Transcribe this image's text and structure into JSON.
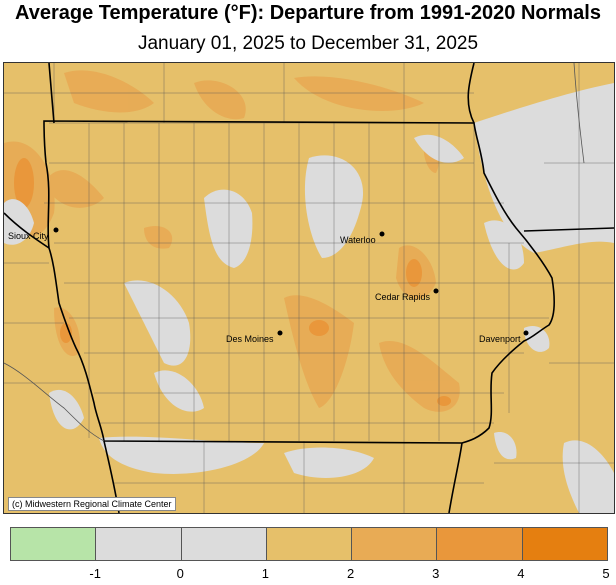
{
  "header": {
    "title": "Average Temperature (°F): Departure from 1991-2020 Normals",
    "subtitle": "January 01, 2025 to December 31, 2025"
  },
  "map": {
    "cities": [
      {
        "name": "Sioux City"
      },
      {
        "name": "Waterloo"
      },
      {
        "name": "Cedar Rapids"
      },
      {
        "name": "Des Moines"
      },
      {
        "name": "Davenport"
      }
    ],
    "credit": "(c) Midwestern Regional Climate Center"
  },
  "legend": {
    "colors": [
      "#b7e4a8",
      "#dcdcdc",
      "#dcdcdc",
      "#e6c06a",
      "#e8ab55",
      "#e9973b",
      "#e57f10"
    ],
    "labels": [
      "-1",
      "0",
      "1",
      "2",
      "3",
      "4",
      "5"
    ]
  }
}
